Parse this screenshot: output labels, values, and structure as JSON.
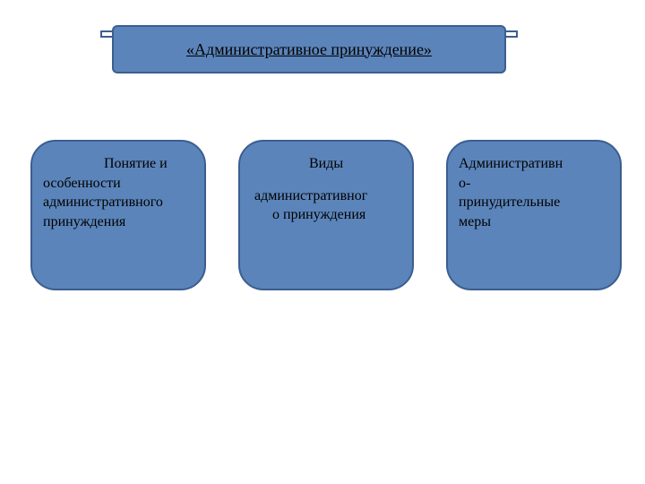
{
  "diagram": {
    "type": "infographic",
    "background_color": "#ffffff",
    "box_fill_color": "#5b84ba",
    "box_border_color": "#3b5e8f",
    "text_color": "#000000",
    "title_fontsize": 18,
    "card_fontsize": 16,
    "card_border_radius": 28,
    "title": "«Административное принуждение»",
    "cards": [
      {
        "line1": "Понятие   и",
        "line2": "особенности",
        "line3": "административного",
        "line4": "принуждения"
      },
      {
        "line1": "Виды",
        "line2": "административног",
        "line3": "о принуждения"
      },
      {
        "line1": "Административн",
        "line2": "о-",
        "line3": "принудительные",
        "line4": "меры"
      }
    ]
  }
}
